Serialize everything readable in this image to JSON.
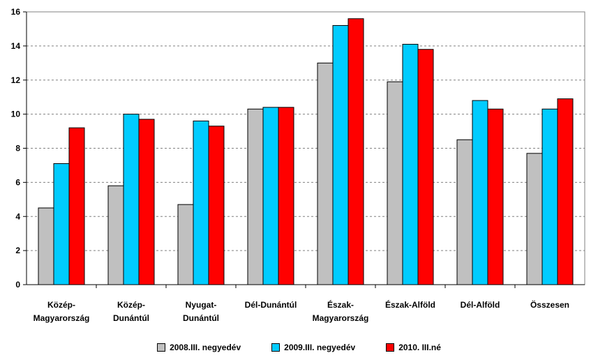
{
  "chart_data": {
    "type": "bar",
    "categories": [
      [
        "Közép-",
        "Magyarország"
      ],
      [
        "Közép-",
        "Dunántúl"
      ],
      [
        "Nyugat-",
        "Dunántúl"
      ],
      [
        "Dél-Dunántúl"
      ],
      [
        "Észak-",
        "Magyarország"
      ],
      [
        "Észak-Alföld"
      ],
      [
        "Dél-Alföld"
      ],
      [
        "Összesen"
      ]
    ],
    "series": [
      {
        "name": "2008.III. negyedév",
        "color": "#c0c0c0",
        "values": [
          4.5,
          5.8,
          4.7,
          10.3,
          13.0,
          11.9,
          8.5,
          7.7
        ]
      },
      {
        "name": "2009.III. negyedév",
        "color": "#00ccff",
        "values": [
          7.1,
          10.0,
          9.6,
          10.4,
          15.2,
          14.1,
          10.8,
          10.3
        ]
      },
      {
        "name": "2010. III.né",
        "color": "#ff0000",
        "values": [
          9.2,
          9.7,
          9.3,
          10.4,
          15.6,
          13.8,
          10.3,
          10.9
        ]
      }
    ],
    "ylim": [
      0,
      16
    ],
    "yticks": [
      "0",
      "2",
      "4",
      "6",
      "8",
      "10",
      "12",
      "14",
      "16"
    ],
    "grid": true,
    "legend_position": "bottom"
  }
}
